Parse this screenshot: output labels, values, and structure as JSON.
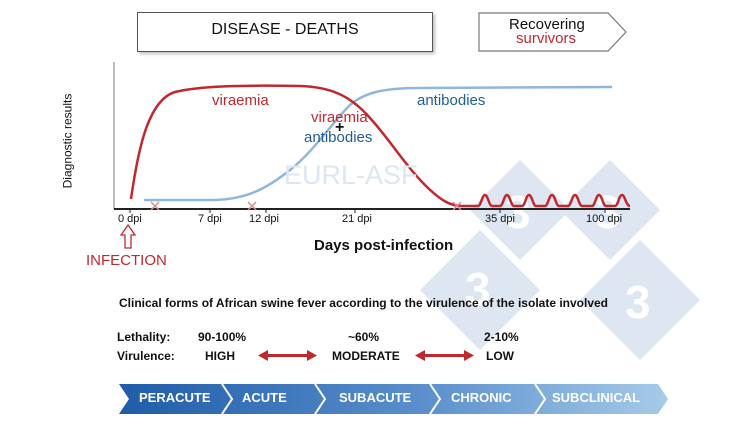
{
  "banner": {
    "title": "DISEASE - DEATHS",
    "recover_line1": "Recovering",
    "recover_line2": "survivors"
  },
  "chart": {
    "ylabel": "Diagnostic results",
    "xlabel": "Days post-infection",
    "watermark": "EURL-ASF",
    "ticks": [
      "0 dpi",
      "7 dpi",
      "12 dpi",
      "21 dpi",
      "35 dpi",
      "100 dpi"
    ],
    "labels": {
      "viraemia": "viraemia",
      "antibodies": "antibodies",
      "viraemia_mid": "viraemia",
      "plus": "+",
      "antibodies_mid": "antibodies"
    },
    "infection": "INFECTION"
  },
  "chart_data": {
    "type": "line",
    "x_ticks": [
      "0 dpi",
      "7 dpi",
      "12 dpi",
      "21 dpi",
      "35 dpi",
      "100 dpi"
    ],
    "xlabel": "Days post-infection",
    "ylabel": "Diagnostic results",
    "series": [
      {
        "name": "viraemia",
        "color": "#c0282d"
      },
      {
        "name": "antibodies",
        "color": "#8fb6dc"
      }
    ]
  },
  "clinical": {
    "heading": "Clinical forms of African swine fever according to the virulence of the isolate involved",
    "lethality_label": "Lethality:",
    "virulence_label": "Virulence:",
    "lethality": [
      "90-100%",
      "~60%",
      "2-10%"
    ],
    "virulence": [
      "HIGH",
      "MODERATE",
      "LOW"
    ]
  },
  "forms": [
    "PERACUTE",
    "ACUTE",
    "SUBACUTE",
    "CHRONIC",
    "SUBCLINICAL"
  ],
  "colors": {
    "red": "#c0282d",
    "blue_text": "#1f5d94",
    "light_blue": "#8fb6dc",
    "chevron_dark": "#1f5ca8",
    "chevron_light": "#9cc3e3"
  }
}
